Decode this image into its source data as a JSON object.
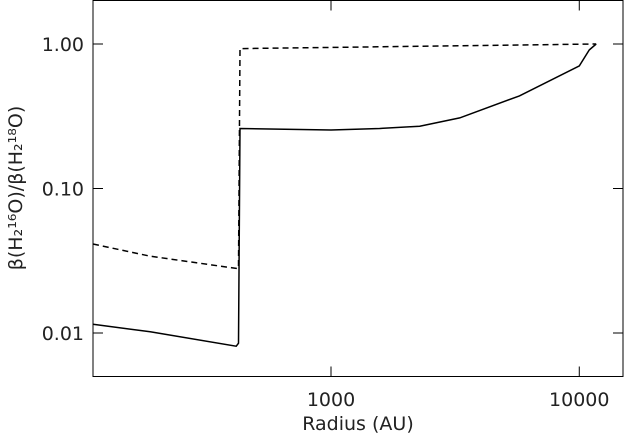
{
  "chart_data": {
    "type": "line",
    "xlabel": "Radius (AU)",
    "ylabel": "β(H₂¹⁶O)/β(H₂¹⁸O)",
    "xscale": "log",
    "yscale": "log",
    "xlim": [
      110,
      15000
    ],
    "ylim": [
      0.005,
      2.0
    ],
    "xticks": [
      1000,
      10000
    ],
    "yticks": [
      {
        "value": 0.01,
        "label": "0.01"
      },
      {
        "value": 0.1,
        "label": "0.10"
      },
      {
        "value": 1,
        "label": "1.00"
      }
    ],
    "series": [
      {
        "color": "#000000",
        "dash": false,
        "x": [
          110,
          187,
          415,
          424,
          430,
          1000,
          1570,
          2277,
          3300,
          5740,
          10000,
          10970,
          11700
        ],
        "values": [
          0.0115,
          0.0102,
          0.0081,
          0.0085,
          0.26,
          0.254,
          0.26,
          0.27,
          0.308,
          0.437,
          0.705,
          0.91,
          1.0
        ]
      },
      {
        "color": "#000000",
        "dash": true,
        "x": [
          110,
          187,
          415,
          424,
          430,
          11700
        ],
        "values": [
          0.0413,
          0.034,
          0.028,
          0.028,
          0.93,
          1.0
        ]
      }
    ]
  }
}
